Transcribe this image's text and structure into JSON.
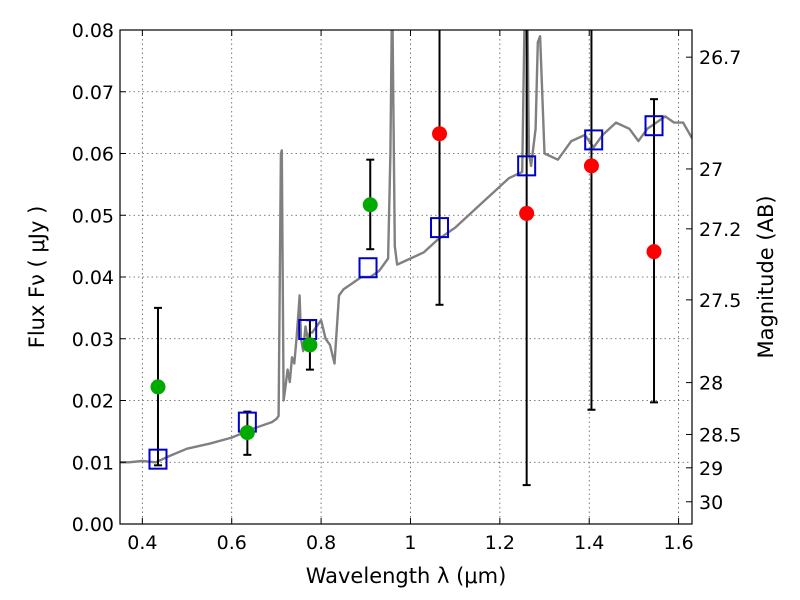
{
  "chart_data": {
    "type": "scatter",
    "title": "",
    "xlabel": "Wavelength  λ (μm)",
    "ylabel": "Flux  Fν  ( μJy )",
    "y2label": "Magnitude (AB)",
    "xlim": [
      0.35,
      1.63
    ],
    "ylim": [
      0.0,
      0.08
    ],
    "grid": true,
    "x_ticks": [
      0.4,
      0.6,
      0.8,
      1.0,
      1.2,
      1.4,
      1.6
    ],
    "x_tick_labels": [
      "0.4",
      "0.6",
      "0.8",
      "1",
      "1.2",
      "1.4",
      "1.6"
    ],
    "y_ticks": [
      0.0,
      0.01,
      0.02,
      0.03,
      0.04,
      0.05,
      0.06,
      0.07,
      0.08
    ],
    "y_tick_labels": [
      "0.00",
      "0.01",
      "0.02",
      "0.03",
      "0.04",
      "0.05",
      "0.06",
      "0.07",
      "0.08"
    ],
    "y2_ticks": [
      {
        "label": "26.7",
        "flux": 0.0756
      },
      {
        "label": "27",
        "flux": 0.0575
      },
      {
        "label": "27.2",
        "flux": 0.0478
      },
      {
        "label": "27.5",
        "flux": 0.0363
      },
      {
        "label": "28",
        "flux": 0.0229
      },
      {
        "label": "28.5",
        "flux": 0.0145
      },
      {
        "label": "29",
        "flux": 0.0091
      },
      {
        "label": "30",
        "flux": 0.0036
      }
    ],
    "series": [
      {
        "kind": "spectrum",
        "color": "#808080",
        "x": [
          0.35,
          0.37,
          0.4,
          0.43,
          0.46,
          0.5,
          0.55,
          0.6,
          0.65,
          0.69,
          0.7,
          0.705,
          0.71,
          0.712,
          0.716,
          0.72,
          0.725,
          0.73,
          0.735,
          0.74,
          0.745,
          0.75,
          0.752,
          0.755,
          0.76,
          0.765,
          0.77,
          0.775,
          0.78,
          0.79,
          0.8,
          0.81,
          0.82,
          0.83,
          0.84,
          0.85,
          0.87,
          0.89,
          0.91,
          0.93,
          0.95,
          0.955,
          0.958,
          0.96,
          0.965,
          0.97,
          1.0,
          1.03,
          1.06,
          1.08,
          1.1,
          1.13,
          1.16,
          1.19,
          1.22,
          1.25,
          1.255,
          1.258,
          1.262,
          1.265,
          1.27,
          1.28,
          1.285,
          1.29,
          1.3,
          1.33,
          1.36,
          1.39,
          1.41,
          1.43,
          1.46,
          1.49,
          1.51,
          1.53,
          1.55,
          1.57,
          1.59,
          1.61,
          1.63
        ],
        "y": [
          0.01,
          0.01,
          0.0102,
          0.01,
          0.011,
          0.0122,
          0.013,
          0.014,
          0.0155,
          0.0165,
          0.017,
          0.0175,
          0.06,
          0.0605,
          0.02,
          0.022,
          0.025,
          0.023,
          0.027,
          0.026,
          0.03,
          0.035,
          0.037,
          0.03,
          0.028,
          0.032,
          0.03,
          0.031,
          0.031,
          0.032,
          0.033,
          0.03,
          0.029,
          0.026,
          0.037,
          0.038,
          0.039,
          0.04,
          0.04,
          0.041,
          0.043,
          0.06,
          0.08,
          0.08,
          0.045,
          0.042,
          0.043,
          0.044,
          0.046,
          0.047,
          0.048,
          0.05,
          0.052,
          0.054,
          0.056,
          0.057,
          0.08,
          0.08,
          0.08,
          0.06,
          0.058,
          0.064,
          0.078,
          0.079,
          0.06,
          0.059,
          0.062,
          0.063,
          0.061,
          0.063,
          0.065,
          0.064,
          0.062,
          0.064,
          0.065,
          0.066,
          0.065,
          0.065,
          0.0625
        ]
      },
      {
        "kind": "model-photometry",
        "marker": "square",
        "color": "#0000cc",
        "x": [
          0.435,
          0.635,
          0.77,
          0.905,
          1.065,
          1.26,
          1.41,
          1.545
        ],
        "y": [
          0.0105,
          0.0165,
          0.0315,
          0.0415,
          0.048,
          0.058,
          0.0622,
          0.0645
        ]
      },
      {
        "kind": "detections",
        "marker": "circle",
        "color": "#00aa00",
        "x": [
          0.435,
          0.635,
          0.775,
          0.91
        ],
        "y": [
          0.0222,
          0.0148,
          0.029,
          0.0517
        ],
        "err_low": [
          0.0095,
          0.0112,
          0.025,
          0.0445
        ],
        "err_high": [
          0.035,
          0.0182,
          0.033,
          0.059
        ]
      },
      {
        "kind": "non-detections",
        "marker": "circle",
        "color": "#ff0000",
        "x": [
          1.065,
          1.26,
          1.405,
          1.545
        ],
        "y": [
          0.0632,
          0.0503,
          0.058,
          0.0441
        ],
        "err_low": [
          0.0355,
          0.0063,
          0.0185,
          0.0197
        ],
        "err_high": [
          0.08,
          0.08,
          0.08,
          0.0688
        ]
      }
    ]
  }
}
